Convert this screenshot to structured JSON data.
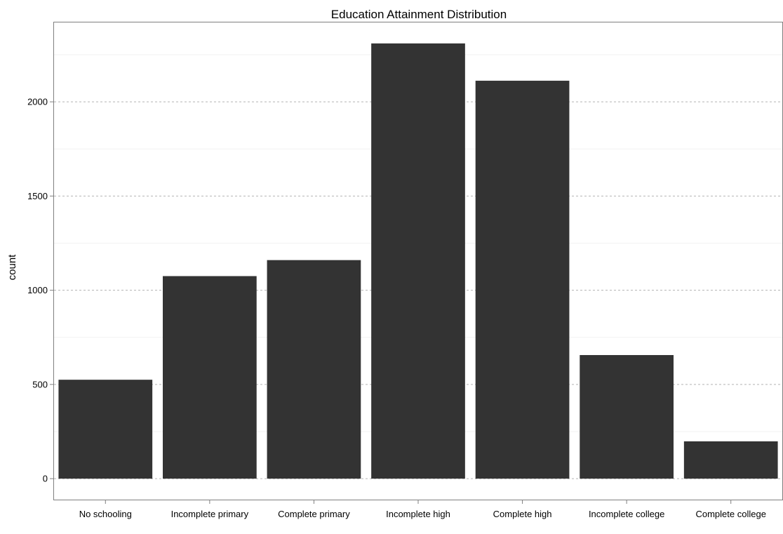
{
  "chart_data": {
    "type": "bar",
    "title": "Education Attainment Distribution",
    "xlabel": "",
    "ylabel": "count",
    "categories": [
      "No schooling",
      "Incomplete primary",
      "Complete primary",
      "Incomplete high",
      "Complete high",
      "Incomplete college",
      "Complete college"
    ],
    "values": [
      525,
      1075,
      1160,
      2310,
      2112,
      656,
      198
    ],
    "ylim": [
      -115,
      2425
    ],
    "y_ticks": [
      0,
      500,
      1000,
      1500,
      2000
    ],
    "y_tick_labels": [
      "0",
      "500",
      "1000",
      "1500",
      "2000"
    ],
    "bar_color": "#333333",
    "grid": true,
    "legend": "none"
  }
}
